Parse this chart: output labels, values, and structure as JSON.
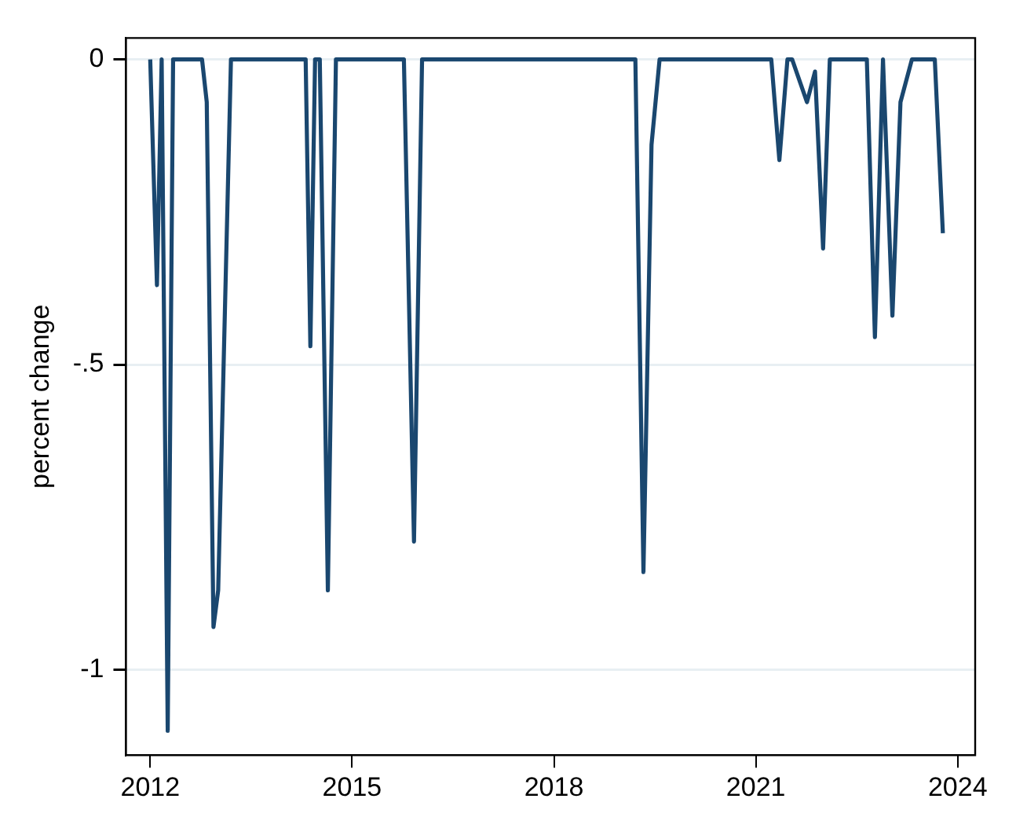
{
  "chart_data": {
    "type": "line",
    "ylabel": "percent change",
    "x": [
      2012.0,
      2012.1,
      2012.17,
      2012.26,
      2012.34,
      2012.77,
      2012.84,
      2012.94,
      2013.01,
      2013.2,
      2014.31,
      2014.38,
      2014.45,
      2014.52,
      2014.64,
      2014.76,
      2015.77,
      2015.92,
      2016.04,
      2019.21,
      2019.33,
      2019.45,
      2019.57,
      2021.23,
      2021.35,
      2021.47,
      2021.54,
      2021.76,
      2021.88,
      2022.0,
      2022.1,
      2022.65,
      2022.77,
      2022.89,
      2023.03,
      2023.15,
      2023.32,
      2023.66,
      2023.78
    ],
    "series": [
      {
        "color": "#1a476f",
        "values": [
          0,
          -0.37,
          0,
          -1.1,
          0,
          0,
          -0.07,
          -0.93,
          -0.87,
          0,
          0,
          -0.47,
          0,
          0,
          -0.87,
          0,
          0,
          -0.79,
          0,
          0,
          -0.84,
          -0.14,
          0,
          0,
          -0.165,
          0,
          0,
          -0.07,
          -0.02,
          -0.31,
          0,
          0,
          -0.455,
          0,
          -0.42,
          -0.07,
          0,
          0,
          -0.285
        ]
      }
    ],
    "xlim": [
      2011.64,
      2024.26
    ],
    "xticks": [
      2012,
      2015,
      2018,
      2021,
      2024
    ],
    "ylim": [
      -1.14,
      0.035
    ],
    "yticks": [
      {
        "value": 0,
        "label": "0"
      },
      {
        "value": -0.5,
        "label": "-.5"
      },
      {
        "value": -1,
        "label": "-1"
      }
    ],
    "grid": "y",
    "legend": false,
    "marker": "none",
    "line_style": "solid"
  }
}
